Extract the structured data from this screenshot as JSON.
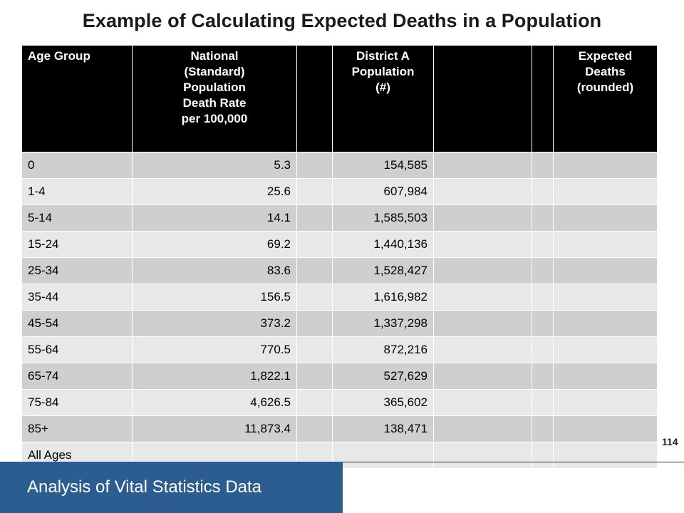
{
  "title": "Example of Calculating Expected Deaths in a Population",
  "table": {
    "headers": {
      "age_group": "Age Group",
      "rate": [
        "National",
        "(Standard)",
        "Population",
        "Death Rate",
        "per  100,000"
      ],
      "population": [
        "District A",
        "Population",
        "(#)"
      ],
      "expected": [
        "Expected",
        "Deaths",
        "(rounded)"
      ]
    },
    "rows": [
      {
        "age": "0",
        "rate": "5.3",
        "population": "154,585"
      },
      {
        "age": "1-4",
        "rate": "25.6",
        "population": "607,984"
      },
      {
        "age": "5-14",
        "rate": "14.1",
        "population": "1,585,503"
      },
      {
        "age": "15-24",
        "rate": "69.2",
        "population": "1,440,136"
      },
      {
        "age": "25-34",
        "rate": "83.6",
        "population": "1,528,427"
      },
      {
        "age": "35-44",
        "rate": "156.5",
        "population": "1,616,982"
      },
      {
        "age": "45-54",
        "rate": "373.2",
        "population": "1,337,298"
      },
      {
        "age": "55-64",
        "rate": "770.5",
        "population": "872,216"
      },
      {
        "age": "65-74",
        "rate": "1,822.1",
        "population": "527,629"
      },
      {
        "age": "75-84",
        "rate": "4,626.5",
        "population": "365,602"
      },
      {
        "age": "85+",
        "rate": "11,873.4",
        "population": "138,471"
      },
      {
        "age": "All Ages",
        "rate": "",
        "population": ""
      }
    ]
  },
  "page_number": "114",
  "footer": {
    "label": "Analysis of Vital Statistics Data",
    "color": "#2c5d91"
  }
}
